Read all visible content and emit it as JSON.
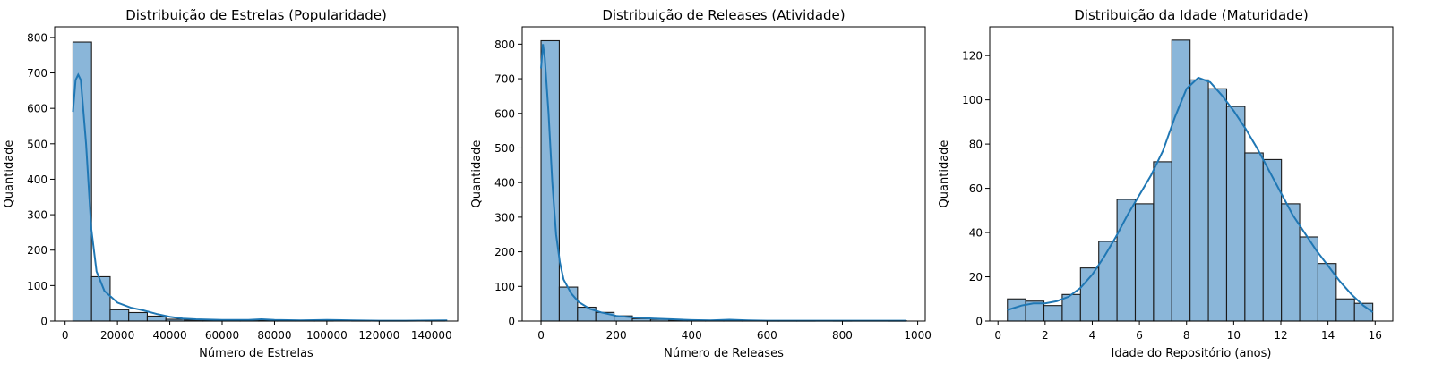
{
  "chart_data": [
    {
      "type": "histogram",
      "title": "Distribuição de Estrelas (Popularidade)",
      "xlabel": "Número de Estrelas",
      "ylabel": "Quantidade",
      "xlim": [
        -4000,
        150000
      ],
      "ylim": [
        0,
        830
      ],
      "xticks": [
        0,
        20000,
        40000,
        60000,
        80000,
        100000,
        120000,
        140000
      ],
      "yticks": [
        0,
        100,
        200,
        300,
        400,
        500,
        600,
        700,
        800
      ],
      "bin_start": 3000,
      "bin_width": 7100,
      "values": [
        787,
        125,
        32,
        24,
        14,
        5,
        3,
        2,
        1,
        1,
        2,
        1,
        1,
        1,
        0,
        1,
        0,
        0,
        0,
        1
      ],
      "kde": [
        [
          3000,
          590
        ],
        [
          4000,
          680
        ],
        [
          5000,
          695
        ],
        [
          6000,
          680
        ],
        [
          8000,
          500
        ],
        [
          10000,
          260
        ],
        [
          12000,
          140
        ],
        [
          15000,
          85
        ],
        [
          20000,
          52
        ],
        [
          25000,
          38
        ],
        [
          30000,
          30
        ],
        [
          35000,
          20
        ],
        [
          40000,
          12
        ],
        [
          45000,
          7
        ],
        [
          50000,
          5
        ],
        [
          60000,
          3
        ],
        [
          70000,
          3
        ],
        [
          75000,
          5
        ],
        [
          80000,
          3
        ],
        [
          90000,
          2
        ],
        [
          100000,
          3
        ],
        [
          110000,
          2
        ],
        [
          120000,
          1
        ],
        [
          130000,
          1
        ],
        [
          146000,
          2
        ]
      ],
      "grid": false,
      "legend": false
    },
    {
      "type": "histogram",
      "title": "Distribuição de Releases (Atividade)",
      "xlabel": "Número de Releases",
      "ylabel": "Quantidade",
      "xlim": [
        -50,
        1020
      ],
      "ylim": [
        0,
        850
      ],
      "xticks": [
        0,
        200,
        400,
        600,
        800,
        1000
      ],
      "yticks": [
        0,
        100,
        200,
        300,
        400,
        500,
        600,
        700,
        800
      ],
      "bin_start": 0,
      "bin_width": 48.5,
      "values": [
        810,
        98,
        40,
        25,
        15,
        7,
        5,
        3,
        2,
        2,
        2,
        1,
        1,
        1,
        1,
        0,
        1,
        0,
        0,
        1
      ],
      "kde": [
        [
          0,
          730
        ],
        [
          5,
          800
        ],
        [
          10,
          760
        ],
        [
          20,
          600
        ],
        [
          30,
          400
        ],
        [
          40,
          250
        ],
        [
          50,
          170
        ],
        [
          60,
          120
        ],
        [
          80,
          80
        ],
        [
          100,
          55
        ],
        [
          130,
          35
        ],
        [
          160,
          25
        ],
        [
          200,
          15
        ],
        [
          250,
          10
        ],
        [
          300,
          7
        ],
        [
          350,
          5
        ],
        [
          400,
          3
        ],
        [
          450,
          2
        ],
        [
          500,
          4
        ],
        [
          550,
          2
        ],
        [
          600,
          1
        ],
        [
          700,
          1
        ],
        [
          800,
          1
        ],
        [
          900,
          1
        ],
        [
          970,
          1
        ]
      ],
      "grid": false,
      "legend": false
    },
    {
      "type": "histogram",
      "title": "Distribuição da Idade (Maturidade)",
      "xlabel": "Idade do Repositório (anos)",
      "ylabel": "Quantidade",
      "xlim": [
        -0.35,
        16.75
      ],
      "ylim": [
        0,
        133
      ],
      "xticks": [
        0,
        2,
        4,
        6,
        8,
        10,
        12,
        14,
        16
      ],
      "yticks": [
        0,
        20,
        40,
        60,
        80,
        100,
        120
      ],
      "bin_start": 0.4,
      "bin_width": 0.775,
      "values": [
        10,
        9,
        7,
        12,
        24,
        36,
        55,
        53,
        72,
        127,
        109,
        105,
        97,
        76,
        73,
        53,
        38,
        26,
        10,
        8
      ],
      "kde": [
        [
          0.4,
          5
        ],
        [
          1,
          7
        ],
        [
          1.5,
          8
        ],
        [
          2,
          8
        ],
        [
          2.5,
          9
        ],
        [
          3,
          11
        ],
        [
          3.5,
          15
        ],
        [
          4,
          21
        ],
        [
          4.5,
          29
        ],
        [
          5,
          38
        ],
        [
          5.5,
          48
        ],
        [
          6,
          57
        ],
        [
          6.5,
          66
        ],
        [
          7,
          77
        ],
        [
          7.5,
          92
        ],
        [
          8,
          105
        ],
        [
          8.5,
          110
        ],
        [
          9,
          108
        ],
        [
          9.5,
          102
        ],
        [
          10,
          95
        ],
        [
          10.5,
          87
        ],
        [
          11,
          78
        ],
        [
          11.5,
          68
        ],
        [
          12,
          58
        ],
        [
          12.5,
          48
        ],
        [
          13,
          40
        ],
        [
          13.5,
          32
        ],
        [
          14,
          25
        ],
        [
          14.5,
          18
        ],
        [
          15,
          12
        ],
        [
          15.5,
          7
        ],
        [
          15.9,
          4
        ]
      ],
      "grid": false,
      "legend": false
    }
  ]
}
